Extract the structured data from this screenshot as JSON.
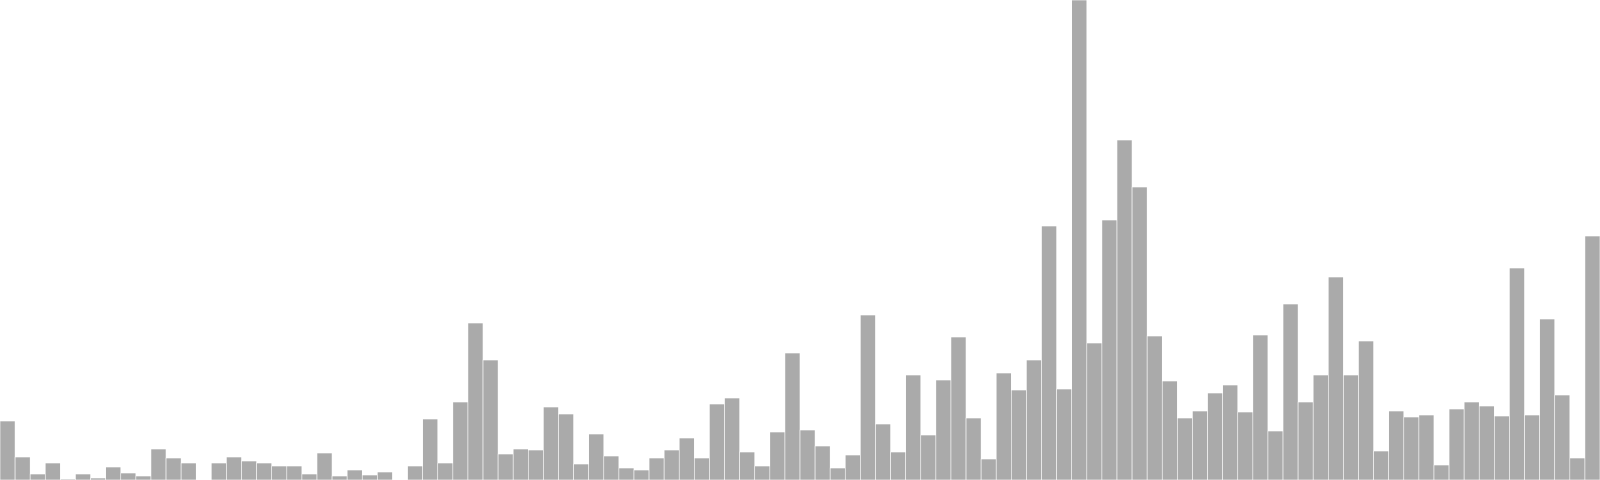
{
  "chart_data": {
    "type": "bar",
    "title": "",
    "xlabel": "",
    "ylabel": "",
    "axes_visible": false,
    "grid": false,
    "legend": "none",
    "bar_color": "#aaaaaa",
    "background_color": "#ffffff",
    "ylim": [
      0,
      480
    ],
    "values": [
      59,
      23,
      6,
      17,
      1,
      6,
      2,
      13,
      7,
      4,
      31,
      22,
      17,
      0,
      17,
      23,
      19,
      17,
      14,
      14,
      6,
      27,
      4,
      10,
      5,
      8,
      0,
      14,
      61,
      17,
      78,
      157,
      120,
      26,
      31,
      30,
      73,
      66,
      16,
      46,
      24,
      12,
      10,
      22,
      30,
      42,
      22,
      76,
      82,
      28,
      14,
      48,
      127,
      50,
      34,
      12,
      25,
      165,
      56,
      28,
      105,
      45,
      100,
      143,
      62,
      21,
      107,
      90,
      120,
      254,
      91,
      480,
      137,
      260,
      340,
      293,
      144,
      99,
      62,
      69,
      87,
      95,
      68,
      145,
      49,
      176,
      78,
      105,
      203,
      105,
      139,
      29,
      69,
      63,
      65,
      15,
      71,
      78,
      74,
      64,
      212,
      65,
      161,
      85,
      22,
      244
    ]
  }
}
